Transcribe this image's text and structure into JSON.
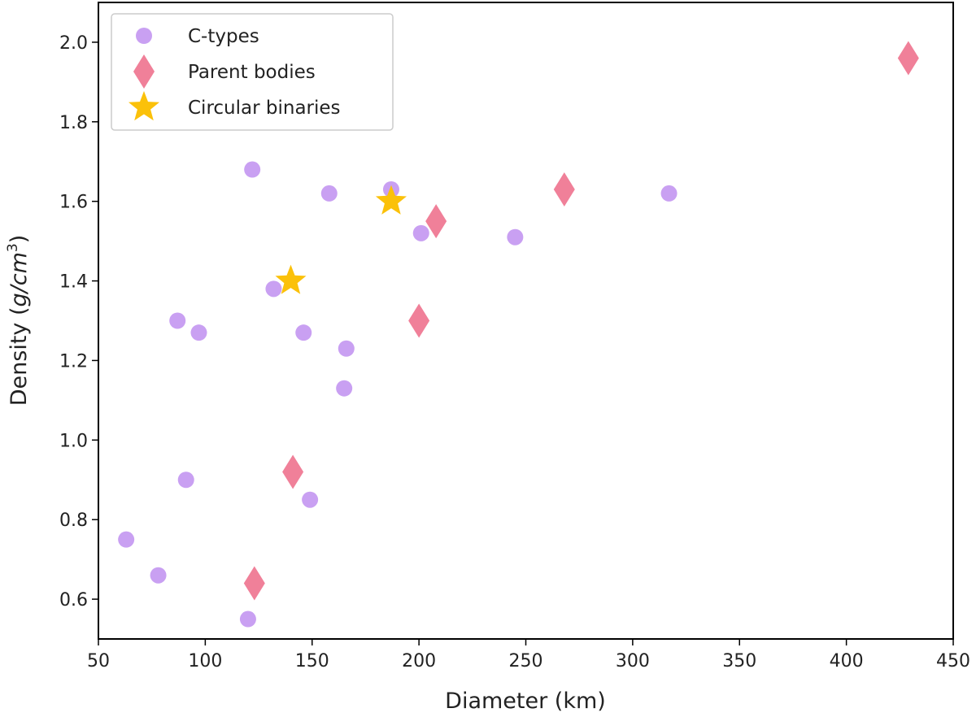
{
  "chart_data": {
    "type": "scatter",
    "title": "",
    "xlabel": "Diameter (km)",
    "ylabel": {
      "prefix": "Density (",
      "var": "g/cm",
      "sup": "3",
      "suffix": ")"
    },
    "xlim": [
      50,
      450
    ],
    "ylim": [
      0.5,
      2.1
    ],
    "xticks": [
      50,
      100,
      150,
      200,
      250,
      300,
      350,
      400,
      450
    ],
    "yticks": [
      0.6,
      0.8,
      1.0,
      1.2,
      1.4,
      1.6,
      1.8,
      2.0
    ],
    "xtick_labels": [
      "50",
      "100",
      "150",
      "200",
      "250",
      "300",
      "350",
      "400",
      "450"
    ],
    "ytick_labels": [
      "0.6",
      "0.8",
      "1.0",
      "1.2",
      "1.4",
      "1.6",
      "1.8",
      "2.0"
    ],
    "grid": false,
    "legend_position": "top-left",
    "series": [
      {
        "name": "C-types",
        "marker": "circle",
        "color": "#c9a0f2",
        "points": [
          [
            122,
            1.68
          ],
          [
            187,
            1.63
          ],
          [
            158,
            1.62
          ],
          [
            317,
            1.62
          ],
          [
            201,
            1.52
          ],
          [
            245,
            1.51
          ],
          [
            132,
            1.38
          ],
          [
            87,
            1.3
          ],
          [
            97,
            1.27
          ],
          [
            146,
            1.27
          ],
          [
            166,
            1.23
          ],
          [
            165,
            1.13
          ],
          [
            91,
            0.9
          ],
          [
            149,
            0.85
          ],
          [
            63,
            0.75
          ],
          [
            78,
            0.66
          ],
          [
            120,
            0.55
          ]
        ]
      },
      {
        "name": "Parent bodies",
        "marker": "diamond",
        "color": "#f08099",
        "points": [
          [
            429,
            1.96
          ],
          [
            268,
            1.63
          ],
          [
            208,
            1.55
          ],
          [
            200,
            1.3
          ],
          [
            141,
            0.92
          ],
          [
            123,
            0.64
          ]
        ]
      },
      {
        "name": "Circular binaries",
        "marker": "star",
        "color": "#fbc10a",
        "points": [
          [
            187,
            1.6
          ],
          [
            140,
            1.4
          ]
        ]
      }
    ]
  }
}
